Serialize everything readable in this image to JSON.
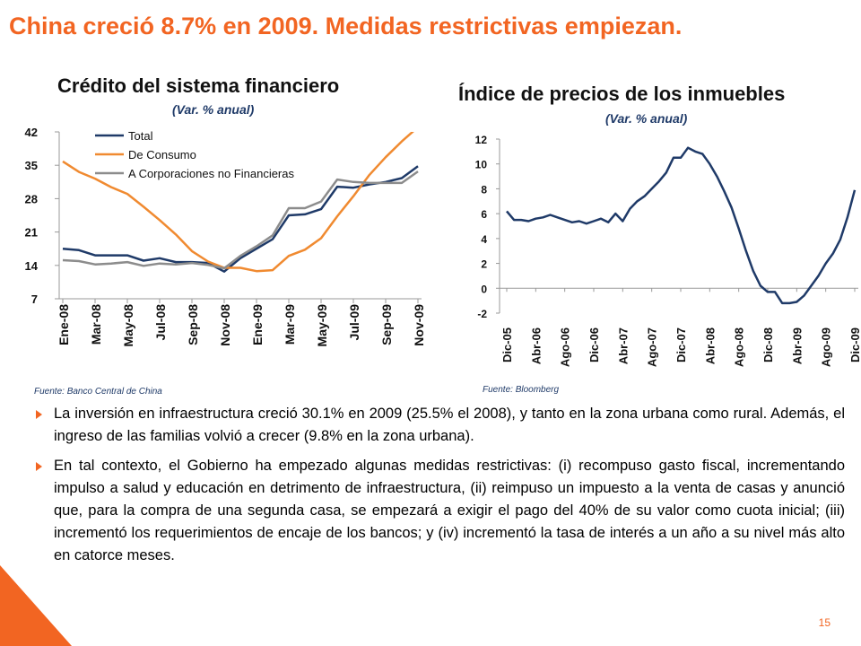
{
  "slide": {
    "title": "China creció 8.7% en 2009. Medidas restrictivas empiezan.",
    "page_number": "15",
    "accent_color": "#f26522"
  },
  "charts": [
    {
      "title": "Crédito del sistema financiero",
      "subtitle": "(Var. % anual)",
      "source": "Fuente: Banco Central de China"
    },
    {
      "title": "Índice de precios de los inmuebles",
      "subtitle": "(Var. % anual)",
      "source": "Fuente: Bloomberg"
    }
  ],
  "chart_data": [
    {
      "type": "line",
      "title": "Crédito del sistema financiero",
      "subtitle": "(Var. % anual)",
      "ylim": [
        7,
        42
      ],
      "yticks": [
        7,
        14,
        21,
        28,
        35,
        42
      ],
      "x_tick_labels": [
        "Ene-08",
        "Mar-08",
        "May-08",
        "Jul-08",
        "Sep-08",
        "Nov-08",
        "Ene-09",
        "Mar-09",
        "May-09",
        "Jul-09",
        "Sep-09",
        "Nov-09"
      ],
      "x": [
        "Ene-08",
        "Feb-08",
        "Mar-08",
        "Abr-08",
        "May-08",
        "Jun-08",
        "Jul-08",
        "Ago-08",
        "Sep-08",
        "Oct-08",
        "Nov-08",
        "Dic-08",
        "Ene-09",
        "Feb-09",
        "Mar-09",
        "Abr-09",
        "May-09",
        "Jun-09",
        "Jul-09",
        "Ago-09",
        "Sep-09",
        "Oct-09",
        "Nov-09"
      ],
      "legend_position": "top-right",
      "grid": false,
      "series": [
        {
          "name": "Total",
          "color": "#1f3a68",
          "values": [
            17.5,
            17.2,
            16.1,
            16.1,
            16.1,
            15.0,
            15.5,
            14.7,
            14.7,
            14.5,
            12.7,
            15.5,
            17.5,
            19.5,
            24.5,
            24.7,
            25.8,
            30.5,
            30.3,
            31.0,
            31.5,
            32.3,
            34.8
          ]
        },
        {
          "name": "De Consumo",
          "color": "#f08a30",
          "values": [
            35.8,
            33.6,
            32.2,
            30.4,
            29.0,
            26.3,
            23.5,
            20.5,
            17.0,
            14.8,
            13.5,
            13.5,
            12.8,
            13.0,
            16.0,
            17.3,
            19.7,
            24.3,
            28.5,
            33.0,
            36.7,
            40.0,
            43.0
          ]
        },
        {
          "name": "A Corporaciones no Financieras",
          "color": "#8c8c8c",
          "values": [
            15.1,
            14.9,
            14.2,
            14.4,
            14.7,
            13.9,
            14.4,
            14.2,
            14.5,
            14.1,
            13.4,
            16.0,
            18.0,
            20.3,
            26.0,
            26.0,
            27.4,
            32.0,
            31.5,
            31.3,
            31.3,
            31.3,
            33.7
          ]
        }
      ]
    },
    {
      "type": "line",
      "title": "Índice de precios de los inmuebles",
      "subtitle": "(Var. % anual)",
      "ylim": [
        -2,
        12
      ],
      "yticks": [
        -2,
        0,
        2,
        4,
        6,
        8,
        10,
        12
      ],
      "x_tick_labels": [
        "Dic-05",
        "Abr-06",
        "Ago-06",
        "Dic-06",
        "Abr-07",
        "Ago-07",
        "Dic-07",
        "Abr-08",
        "Ago-08",
        "Dic-08",
        "Abr-09",
        "Ago-09",
        "Dic-09"
      ],
      "grid": false,
      "series": [
        {
          "name": "",
          "color": "#1f3a68",
          "values": [
            6.2,
            5.5,
            5.5,
            5.4,
            5.6,
            5.7,
            5.9,
            5.7,
            5.5,
            5.3,
            5.4,
            5.2,
            5.4,
            5.6,
            5.3,
            6.0,
            5.4,
            6.4,
            7.0,
            7.4,
            8.0,
            8.6,
            9.3,
            10.5,
            10.5,
            11.3,
            11.0,
            10.8,
            10.0,
            9.0,
            7.8,
            6.5,
            4.8,
            3.0,
            1.4,
            0.2,
            -0.3,
            -0.3,
            -1.2,
            -1.2,
            -1.1,
            -0.6,
            0.2,
            1.0,
            2.0,
            2.8,
            3.9,
            5.7,
            7.9
          ]
        }
      ]
    }
  ],
  "bullets": [
    "La inversión en infraestructura creció 30.1% en 2009 (25.5% el 2008), y tanto en la zona urbana como rural. Además, el ingreso de las familias volvió a crecer (9.8% en la zona urbana).",
    "En tal contexto, el Gobierno ha empezado algunas medidas restrictivas: (i) recompuso gasto fiscal, incrementando impulso a salud y educación en detrimento de infraestructura, (ii) reimpuso un impuesto a la venta de casas y anunció que, para la compra de una segunda casa, se empezará a exigir el pago del 40% de su valor como cuota inicial; (iii) incrementó los requerimientos de encaje de los bancos; y (iv) incrementó la tasa de interés a un año a su nivel más alto en catorce meses."
  ]
}
